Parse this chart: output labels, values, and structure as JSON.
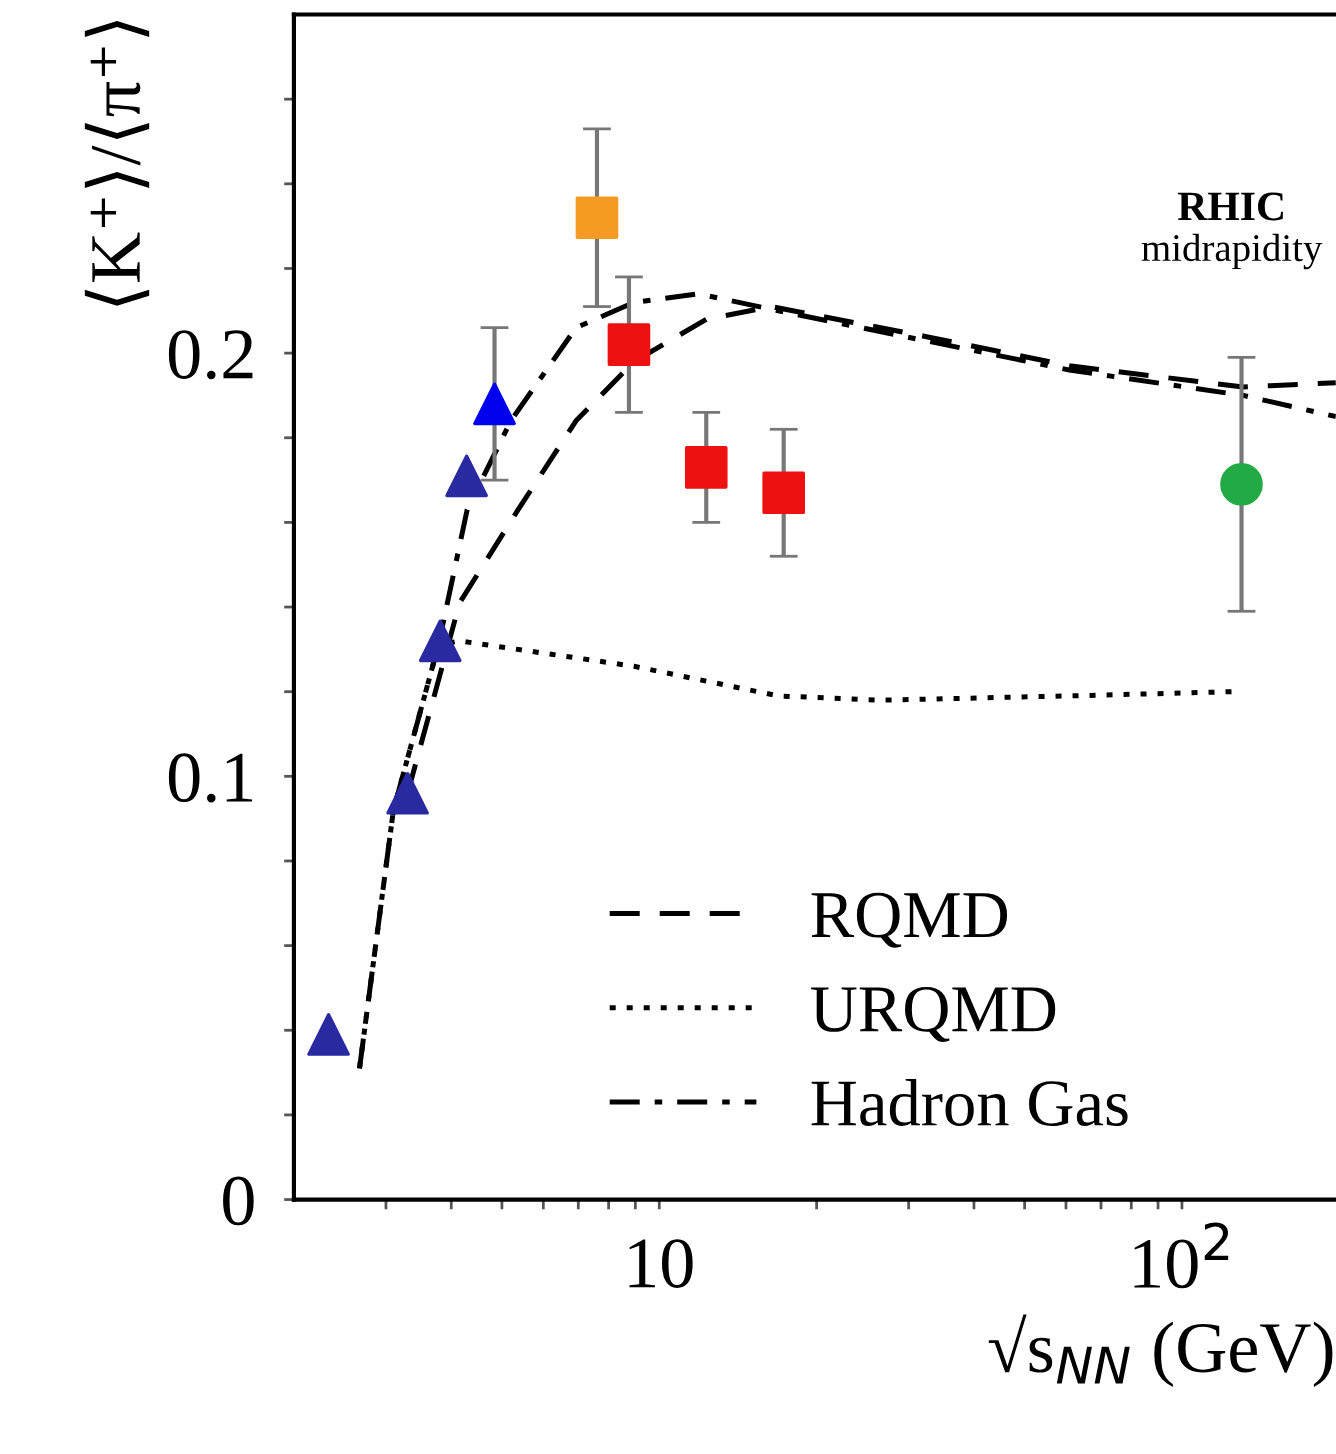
{
  "chart_data": {
    "type": "scatter",
    "xlabel": "√s$_{NN}$ (GeV)",
    "ylabel": "⟨K⁺⟩/⟨π⁺⟩",
    "log": "x",
    "xlim": [
      2,
      197
    ],
    "ylim": [
      0,
      0.28
    ],
    "xticks": [
      {
        "value": 3,
        "label": null
      },
      {
        "value": 4,
        "label": null
      },
      {
        "value": 5,
        "label": null
      },
      {
        "value": 6,
        "label": null
      },
      {
        "value": 7,
        "label": null
      },
      {
        "value": 8,
        "label": null
      },
      {
        "value": 9,
        "label": null
      },
      10,
      {
        "value": 20,
        "label": null
      },
      {
        "value": 30,
        "label": null
      },
      {
        "value": 40,
        "label": null
      },
      {
        "value": 50,
        "label": null
      },
      {
        "value": 60,
        "label": null
      },
      {
        "value": 70,
        "label": null
      },
      {
        "value": 80,
        "label": null
      },
      {
        "value": 90,
        "label": null
      },
      {
        "value": 100,
        "label": "10$^{2}$"
      }
    ],
    "yticks": [
      0,
      {
        "value": 0.02,
        "label": null
      },
      {
        "value": 0.04,
        "label": null
      },
      {
        "value": 0.06,
        "label": null
      },
      {
        "value": 0.08,
        "label": null
      },
      0.1,
      {
        "value": 0.12,
        "label": null
      },
      {
        "value": 0.14,
        "label": null
      },
      {
        "value": 0.16,
        "label": null
      },
      {
        "value": 0.18,
        "label": null
      },
      0.2,
      {
        "value": 0.22,
        "label": null
      },
      {
        "value": 0.24,
        "label": null
      },
      {
        "value": 0.26,
        "label": null
      }
    ],
    "grid": false,
    "legend": "bottom right",
    "series": [
      {
        "type": "line",
        "name": "RQMD",
        "color": "#000000",
        "line_style": "dashed",
        "marker": "none",
        "x": [
          3.3,
          4.15,
          5.37,
          6.93,
          8.95,
          12.3,
          16.4,
          32.1,
          60.9,
          131,
          197
        ],
        "values": [
          0.096,
          0.141,
          0.163,
          0.184,
          0.198,
          0.208,
          0.211,
          0.204,
          0.197,
          0.192,
          0.193
        ]
      },
      {
        "type": "line",
        "name": "URQMD",
        "color": "#000000",
        "line_style": "dotted",
        "marker": "none",
        "x": [
          2.67,
          3.1,
          3.78,
          4.15,
          8.95,
          16.9,
          26.5,
          60.9,
          125
        ],
        "values": [
          0.031,
          0.092,
          0.131,
          0.132,
          0.126,
          0.119,
          0.118,
          0.119,
          0.12
        ]
      },
      {
        "type": "line",
        "name": "Hadron Gas",
        "color": "#000000",
        "line_style": "dashdot",
        "marker": "none",
        "x": [
          2.67,
          3.1,
          3.78,
          4.29,
          5.2,
          6.93,
          8.95,
          11.9,
          16.9,
          32.1,
          60.9,
          131,
          197
        ],
        "values": [
          0.031,
          0.092,
          0.131,
          0.163,
          0.184,
          0.206,
          0.212,
          0.214,
          0.21,
          0.203,
          0.196,
          0.19,
          0.185
        ]
      },
      {
        "color": "#2a2aa0",
        "marker": "triangle",
        "x": [
          2.33,
          3.3,
          3.81,
          4.28
        ],
        "values": [
          0.039,
          0.096,
          0.132,
          0.171
        ]
      },
      {
        "color": "#0000ee",
        "marker": "triangle",
        "x": [
          4.84
        ],
        "values": [
          0.188
        ],
        "errors": [
          0.018
        ]
      },
      {
        "color": "#f59a23",
        "marker": "square",
        "x": [
          7.6
        ],
        "values": [
          0.232
        ],
        "errors": [
          0.021
        ]
      },
      {
        "color": "#ee1111",
        "marker": "square",
        "x": [
          8.75,
          12.3,
          17.3
        ],
        "values": [
          0.202,
          0.173,
          0.167
        ],
        "errors": [
          0.016,
          0.013,
          0.015
        ]
      },
      {
        "color": "#22aa44",
        "marker": "circle",
        "x": [
          130
        ],
        "values": [
          0.169
        ],
        "errors": [
          0.03
        ]
      }
    ],
    "annotations": [
      "RHIC",
      "midrapidity"
    ]
  }
}
